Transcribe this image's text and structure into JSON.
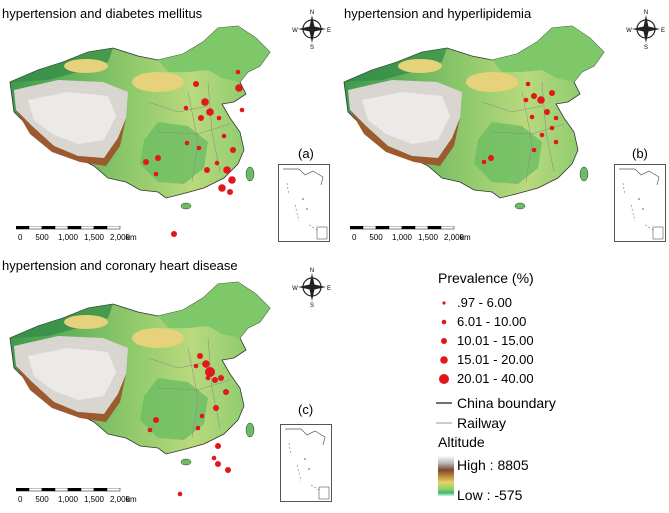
{
  "panels": [
    {
      "id": "a",
      "title": "hypertension and diabetes mellitus",
      "label": "(a)"
    },
    {
      "id": "b",
      "title": "hypertension and hyperlipidemia",
      "label": "(b)"
    },
    {
      "id": "c",
      "title": "hypertension and coronary heart disease",
      "label": "(c)"
    }
  ],
  "scale": {
    "ticks": [
      "0",
      "500",
      "1,000",
      "1,500",
      "2,000"
    ],
    "unit": "km"
  },
  "compass": {
    "n": "N",
    "s": "S",
    "e": "E",
    "w": "W"
  },
  "legend": {
    "title": "Prevalence (%)",
    "classes": [
      ".97 - 6.00",
      "6.01 - 10.00",
      "10.01 - 15.00",
      "15.01 - 20.00",
      "20.01 - 40.00"
    ],
    "boundary": "China boundary",
    "railway": "Railway",
    "altitude_title": "Altitude",
    "altitude_high": "High : 8805",
    "altitude_low": "Low : -575"
  },
  "colors": {
    "point": "#e3161b",
    "boundary": "#333333",
    "railway": "#9a9a9a"
  }
}
